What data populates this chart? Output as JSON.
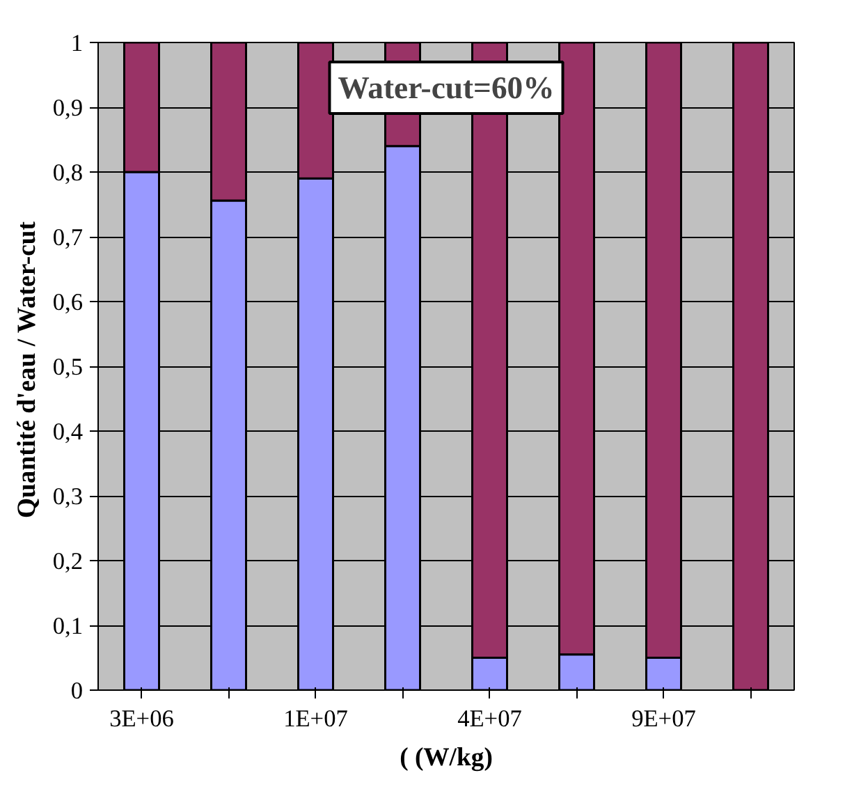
{
  "chart_data": {
    "type": "bar",
    "stacked": true,
    "categories": [
      "3E+06",
      null,
      "1E+07",
      null,
      "4E+07",
      null,
      "9E+07",
      null
    ],
    "series": [
      {
        "color": "#9999ff",
        "values": [
          0.8,
          0.756,
          0.79,
          0.84,
          0.05,
          0.055,
          0.05,
          0
        ]
      },
      {
        "color": "#993366",
        "values": [
          0.2,
          0.244,
          0.21,
          0.16,
          0.95,
          0.945,
          0.95,
          1
        ]
      }
    ],
    "xlabel": "( (W/kg)",
    "ylabel": "Quantité d'eau /  Water-cut",
    "annotations": [
      "Water-cut=60%"
    ],
    "ylim": [
      0,
      1
    ],
    "yticks": [
      0,
      {
        "value": 0.1,
        "label": "0,1"
      },
      {
        "value": 0.2,
        "label": "0,2"
      },
      {
        "value": 0.3,
        "label": "0,3"
      },
      {
        "value": 0.4,
        "label": "0,4"
      },
      {
        "value": 0.5,
        "label": "0,5"
      },
      {
        "value": 0.6,
        "label": "0,6"
      },
      {
        "value": 0.7,
        "label": "0,7"
      },
      {
        "value": 0.8,
        "label": "0,8"
      },
      {
        "value": 0.9,
        "label": "0,9"
      },
      1
    ],
    "grid": "y"
  }
}
